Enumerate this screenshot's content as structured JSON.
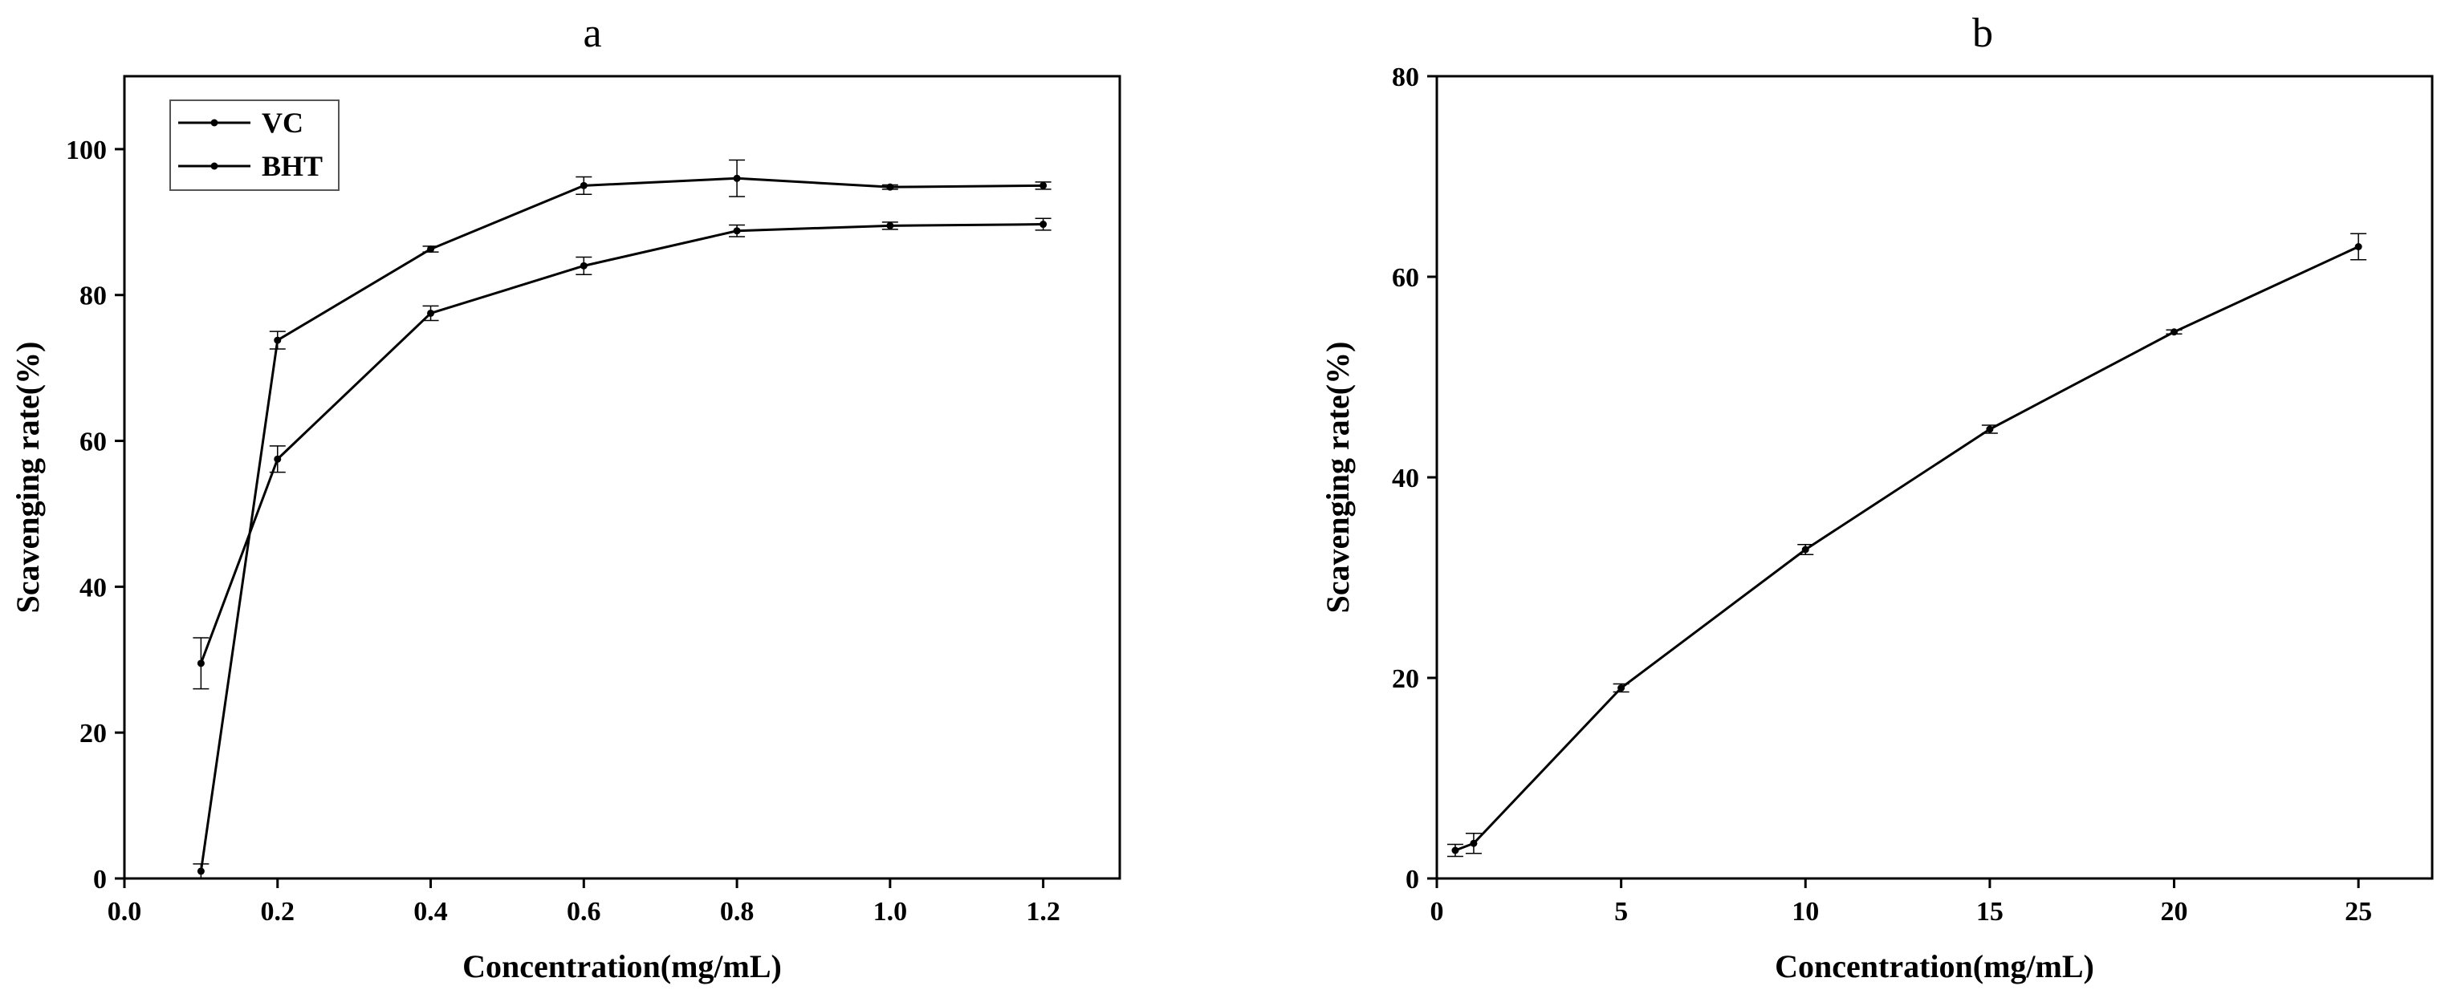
{
  "chart_data": [
    {
      "type": "line",
      "title": "a",
      "xlabel": "Concentration(mg/mL)",
      "ylabel": "Scavenging rate(%)",
      "xlim": [
        0.0,
        1.3
      ],
      "ylim": [
        0,
        110
      ],
      "xticks": [
        "0.0",
        "0.2",
        "0.4",
        "0.6",
        "0.8",
        "1.0",
        "1.2"
      ],
      "yticks": [
        "0",
        "20",
        "40",
        "60",
        "80",
        "100"
      ],
      "grid": false,
      "legend": {
        "position": "top-left",
        "entries": [
          "VC",
          "BHT"
        ]
      },
      "x": [
        0.1,
        0.2,
        0.4,
        0.6,
        0.8,
        1.0,
        1.2
      ],
      "series": [
        {
          "name": "VC",
          "values": [
            1.0,
            73.8,
            86.3,
            95.0,
            96.0,
            94.8,
            95.0
          ],
          "errors": [
            1.0,
            1.2,
            0.4,
            1.2,
            2.5,
            0.3,
            0.5
          ]
        },
        {
          "name": "BHT",
          "values": [
            29.5,
            57.5,
            77.5,
            84.0,
            88.8,
            89.5,
            89.7
          ],
          "errors": [
            3.5,
            1.8,
            1.0,
            1.2,
            0.8,
            0.5,
            0.8
          ]
        }
      ]
    },
    {
      "type": "line",
      "title": "b",
      "xlabel": "Concentration(mg/mL)",
      "ylabel": "Scavenging rate(%)",
      "xlim": [
        0,
        27
      ],
      "ylim": [
        0,
        80
      ],
      "xticks": [
        "0",
        "5",
        "10",
        "15",
        "20",
        "25"
      ],
      "yticks": [
        "0",
        "20",
        "40",
        "60",
        "80"
      ],
      "grid": false,
      "x": [
        0.5,
        1,
        5,
        10,
        15,
        20,
        25
      ],
      "series": [
        {
          "values": [
            2.8,
            3.5,
            19.0,
            32.8,
            44.8,
            54.5,
            63.0
          ],
          "errors": [
            0.6,
            1.0,
            0.4,
            0.5,
            0.4,
            0.2,
            1.3
          ]
        }
      ]
    }
  ]
}
